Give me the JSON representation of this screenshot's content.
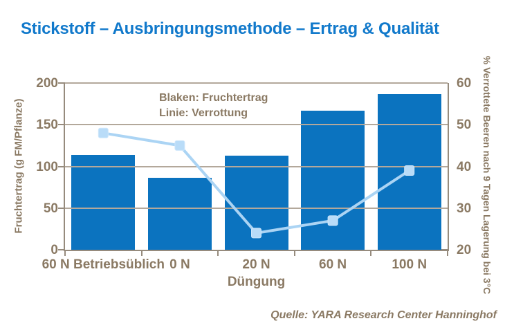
{
  "page": {
    "title": "Stickstoff – Ausbringungsmethode – Ertrag & Qualität",
    "source": "Quelle: YARA Research Center Hanninghof"
  },
  "annotation": {
    "line1": "Blaken: Fruchtertrag",
    "line2": "Linie: Verrottung"
  },
  "chart_data": {
    "type": "bar",
    "subtype": "combo-bar-line",
    "title": "Stickstoff – Ausbringungsmethode – Ertrag & Qualität",
    "categories": [
      "60 N Betriebsüblich",
      "0 N",
      "20 N",
      "60 N",
      "100 N"
    ],
    "series": [
      {
        "name": "Fruchtertrag",
        "render": "bar",
        "axis": "left",
        "values": [
          114,
          86,
          113,
          167,
          187
        ]
      },
      {
        "name": "Verrottung",
        "render": "line",
        "axis": "right",
        "values": [
          48,
          45,
          24,
          27,
          39
        ]
      }
    ],
    "xlabel": "Düngung",
    "ylabel_left": "Fruchtertrag (g FM/Pflanze)",
    "ylabel_right": "% Verrottete Beeren nach 9 Tagen Lagerung bei 3°C",
    "ylim_left": [
      0,
      200
    ],
    "ylim_right": [
      20,
      60
    ],
    "yticks_left": [
      0,
      50,
      100,
      150,
      200
    ],
    "yticks_right": [
      20,
      30,
      40,
      50,
      60
    ],
    "grid": true,
    "legend_position": "annotation-inside-plot"
  },
  "colors": {
    "title-blue": "#1179CB",
    "bar-blue": "#0B73BF",
    "line-blue": "#ABD4F4",
    "marker-blue": "#B9DCF8",
    "text-brown": "#8A7963",
    "grid": "#B3A89B",
    "axis": "#968B7D"
  }
}
